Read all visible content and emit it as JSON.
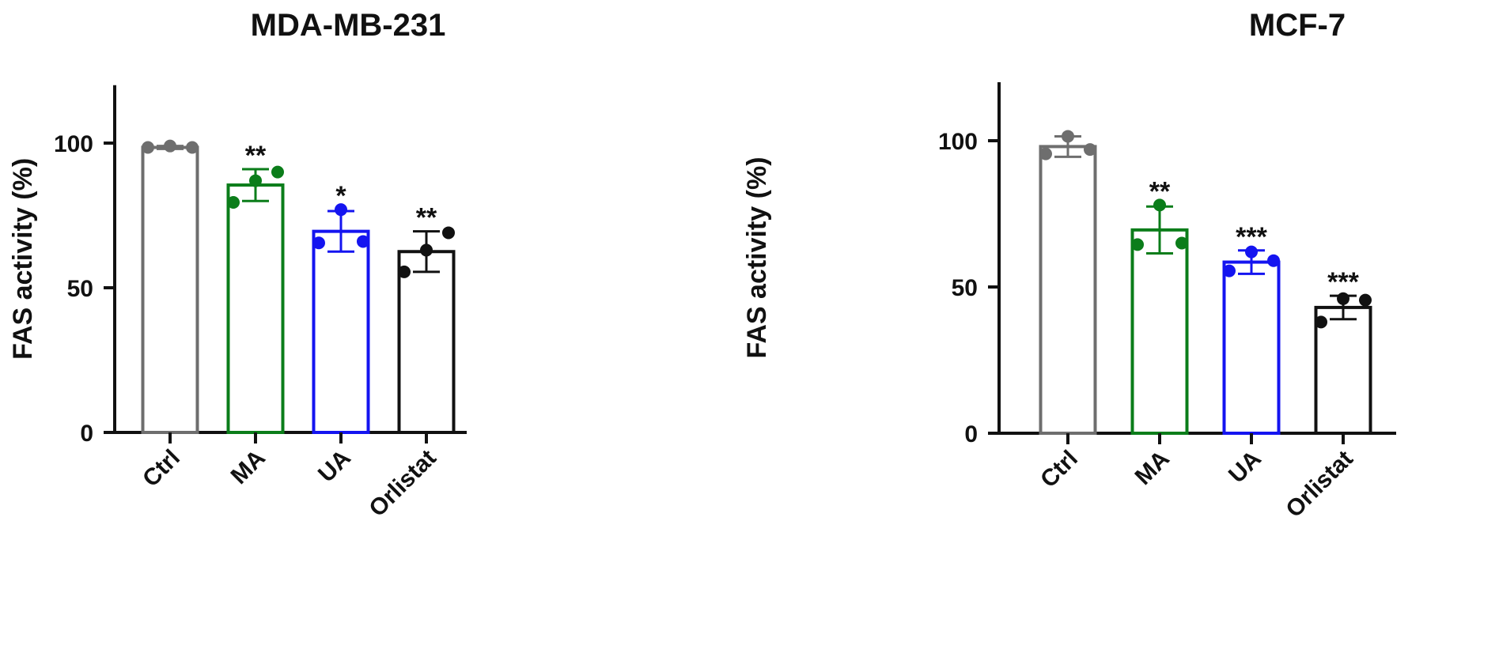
{
  "chart_data": [
    {
      "type": "bar",
      "title": "MDA-MB-231",
      "xlabel": "",
      "ylabel": "FAS activity (%)",
      "ylim": [
        0,
        120
      ],
      "yticks": [
        0,
        50,
        100
      ],
      "categories": [
        "Ctrl",
        "MA",
        "UA",
        "Orlistat"
      ],
      "values": [
        98.5,
        85.5,
        69.5,
        62.5
      ],
      "error": [
        0.5,
        5.5,
        7,
        7
      ],
      "points": [
        [
          98.5,
          99,
          98.5
        ],
        [
          79.5,
          87,
          90
        ],
        [
          65.5,
          77,
          66
        ],
        [
          55.5,
          63,
          69
        ]
      ],
      "significance": [
        "",
        "**",
        "*",
        "**"
      ],
      "colors": [
        "#6e6e6e",
        "#0b7d1a",
        "#1414f0",
        "#111111"
      ],
      "grid": false
    },
    {
      "type": "bar",
      "title": "MCF-7",
      "xlabel": "",
      "ylabel": "FAS activity (%)",
      "ylim": [
        0,
        120
      ],
      "yticks": [
        0,
        50,
        100
      ],
      "categories": [
        "Ctrl",
        "MA",
        "UA",
        "Orlistat"
      ],
      "values": [
        98,
        69.5,
        58.5,
        43
      ],
      "error": [
        3.5,
        8,
        4,
        4
      ],
      "points": [
        [
          95.5,
          101.5,
          97
        ],
        [
          64.5,
          78,
          65
        ],
        [
          55.5,
          62,
          59
        ],
        [
          38,
          46,
          45.5
        ]
      ],
      "significance": [
        "",
        "**",
        "***",
        "***"
      ],
      "colors": [
        "#6e6e6e",
        "#0b7d1a",
        "#1414f0",
        "#111111"
      ],
      "grid": false
    }
  ]
}
